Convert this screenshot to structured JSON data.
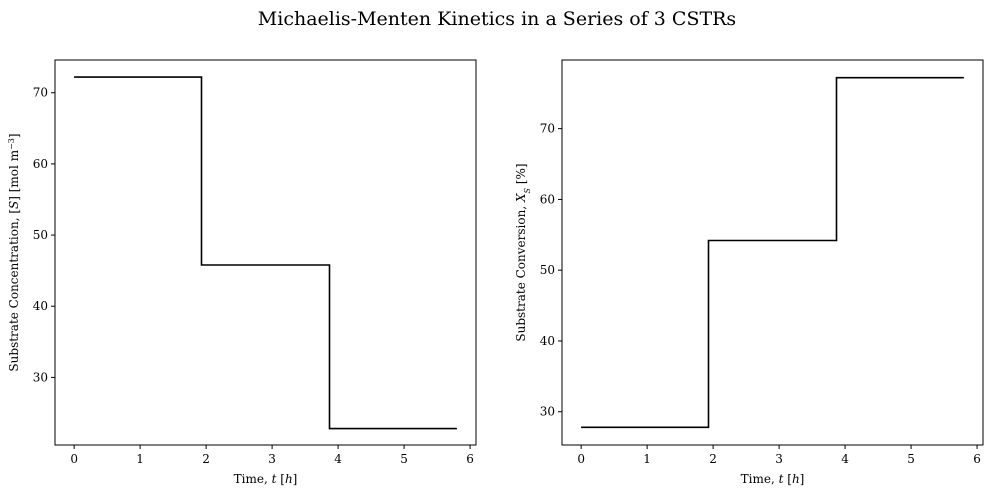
{
  "figure": {
    "title": "Michaelis-Menten Kinetics in a Series of 3 CSTRs"
  },
  "chart_data": [
    {
      "type": "line",
      "step": true,
      "xlabel": "Time, t [h]",
      "ylabel": "Substrate Concentration, [S] [mol m⁻³]",
      "xlim": [
        -0.29,
        6.09
      ],
      "ylim": [
        20.5,
        74.6
      ],
      "xticks": [
        0,
        1,
        2,
        3,
        4,
        5,
        6
      ],
      "yticks": [
        30,
        40,
        50,
        60,
        70
      ],
      "grid": false,
      "line_color": "#000000",
      "x": [
        0,
        1.93,
        1.93,
        3.87,
        3.87,
        5.8
      ],
      "y": [
        72.2,
        72.2,
        45.8,
        45.8,
        22.8,
        22.8
      ]
    },
    {
      "type": "line",
      "step": true,
      "xlabel": "Time, t [h]",
      "ylabel": "Substrate Conversion, X_S [%]",
      "xlim": [
        -0.29,
        6.09
      ],
      "ylim": [
        25.3,
        79.7
      ],
      "xticks": [
        0,
        1,
        2,
        3,
        4,
        5,
        6
      ],
      "yticks": [
        30,
        40,
        50,
        60,
        70
      ],
      "grid": false,
      "line_color": "#000000",
      "x": [
        0,
        1.93,
        1.93,
        3.87,
        3.87,
        5.8
      ],
      "y": [
        27.8,
        27.8,
        54.2,
        54.2,
        77.2,
        77.2
      ]
    }
  ]
}
